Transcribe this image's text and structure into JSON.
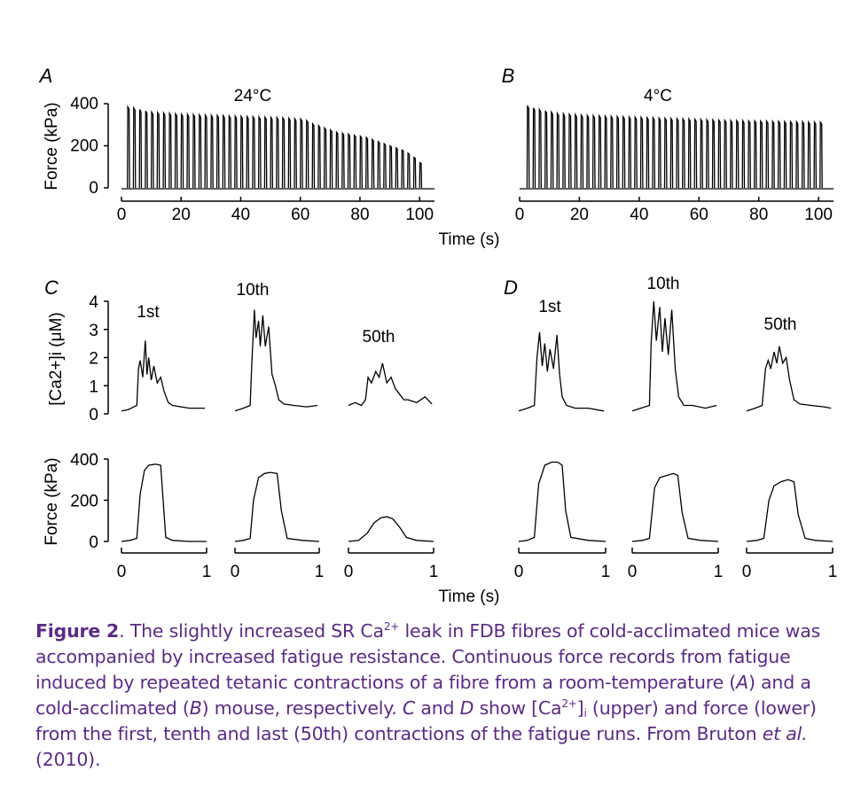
{
  "figure": {
    "panels": {
      "A": {
        "letter": "A",
        "temp": "24°C"
      },
      "B": {
        "letter": "B",
        "temp": "4°C"
      },
      "C": {
        "letter": "C"
      },
      "D": {
        "letter": "D"
      }
    },
    "time_s_label": "Time (s)",
    "force_label": "Force (kPa)",
    "ca_label": "[Ca2+]i (μM)",
    "trace_labels": [
      "1st",
      "10th",
      "50th"
    ]
  },
  "caption": {
    "figure_label": "Figure 2",
    "text_1": ". The slightly increased SR Ca",
    "text_2": " leak in FDB fibres of cold-acclimated mice was accompanied by increased fatigue resistance. Continuous force records from fatigue induced by repeated tetanic contractions of a fibre from a room-temperature (",
    "text_3": ") and a cold-acclimated (",
    "text_4": ") mouse, respectively. ",
    "text_5": " and ",
    "text_6": " show [Ca",
    "text_7": "]",
    "text_8": " (upper) and force (lower) from the first, tenth and last (50th) contractions of the fatigue runs. From Bruton ",
    "et_al": "et al.",
    "text_9": " (2010).",
    "sup": "2+",
    "sub": "i",
    "A": "A",
    "B": "B",
    "C": "C",
    "D": "D"
  },
  "chart_data": [
    {
      "panel": "A",
      "type": "line",
      "title": "24°C",
      "xlabel": "Time (s)",
      "ylabel": "Force (kPa)",
      "xlim": [
        0,
        105
      ],
      "ylim": [
        0,
        400
      ],
      "xticks": [
        0,
        20,
        40,
        60,
        80,
        100
      ],
      "yticks": [
        0,
        200,
        400
      ],
      "tetanus_count": 50,
      "first_tetanus_s": 2,
      "interval_s": 2.0,
      "peak_force_kPa": [
        385,
        380,
        372,
        365,
        360,
        358,
        356,
        354,
        352,
        350,
        349,
        348,
        347,
        346,
        345,
        344,
        343,
        342,
        341,
        340,
        339,
        338,
        337,
        336,
        335,
        334,
        333,
        331,
        329,
        327,
        320,
        305,
        296,
        285,
        275,
        265,
        260,
        255,
        250,
        245,
        240,
        230,
        220,
        210,
        200,
        190,
        180,
        165,
        145,
        120
      ]
    },
    {
      "panel": "B",
      "type": "line",
      "title": "4°C",
      "xlabel": "Time (s)",
      "ylabel": "",
      "xlim": [
        0,
        105
      ],
      "ylim": [
        0,
        400
      ],
      "xticks": [
        0,
        20,
        40,
        60,
        80,
        100
      ],
      "yticks": [],
      "tetanus_count": 50,
      "first_tetanus_s": 2.5,
      "interval_s": 2.0,
      "peak_force_kPa": [
        390,
        380,
        372,
        366,
        360,
        355,
        352,
        350,
        348,
        346,
        344,
        343,
        342,
        341,
        340,
        339,
        338,
        337,
        336,
        335,
        334,
        333,
        332,
        331,
        330,
        329,
        328,
        327,
        326,
        325,
        324,
        323,
        322,
        321,
        320,
        320,
        319,
        318,
        318,
        317,
        317,
        316,
        316,
        315,
        315,
        314,
        314,
        313,
        313,
        312
      ]
    },
    {
      "panel": "C",
      "type": "line",
      "xlabel": "Time (s)",
      "ylabel_top": "[Ca2+]i (μM)",
      "ylabel_bottom": "Force (kPa)",
      "ca_ylim": [
        0,
        4
      ],
      "ca_yticks": [
        0,
        1,
        2,
        3,
        4
      ],
      "force_ylim": [
        0,
        400
      ],
      "force_yticks": [
        0,
        200,
        400
      ],
      "xlim": [
        0,
        1
      ],
      "xticks": [
        0,
        1
      ],
      "series": [
        {
          "name": "1st",
          "ca_t": [
            0,
            0.08,
            0.18,
            0.2,
            0.22,
            0.25,
            0.28,
            0.3,
            0.32,
            0.35,
            0.38,
            0.42,
            0.46,
            0.5,
            0.55,
            0.6,
            0.7,
            0.8,
            0.9,
            0.98
          ],
          "ca_v": [
            0.1,
            0.15,
            0.3,
            1.6,
            1.9,
            1.3,
            2.6,
            1.4,
            2.0,
            1.2,
            1.7,
            1.1,
            1.3,
            0.8,
            0.4,
            0.3,
            0.25,
            0.2,
            0.2,
            0.2
          ],
          "force_t": [
            0,
            0.1,
            0.18,
            0.22,
            0.27,
            0.32,
            0.4,
            0.46,
            0.49,
            0.52,
            0.6,
            0.8,
            1.0
          ],
          "force_v": [
            0,
            5,
            15,
            230,
            345,
            370,
            375,
            370,
            200,
            20,
            5,
            0,
            0
          ]
        },
        {
          "name": "10th",
          "ca_t": [
            0,
            0.1,
            0.18,
            0.2,
            0.23,
            0.25,
            0.28,
            0.3,
            0.33,
            0.36,
            0.4,
            0.44,
            0.48,
            0.52,
            0.58,
            0.7,
            0.85,
            0.98
          ],
          "ca_v": [
            0.1,
            0.2,
            0.3,
            1.8,
            3.7,
            2.7,
            3.3,
            2.4,
            3.5,
            2.4,
            3.1,
            1.4,
            1.0,
            0.5,
            0.35,
            0.3,
            0.25,
            0.3
          ],
          "force_t": [
            0,
            0.1,
            0.18,
            0.22,
            0.28,
            0.35,
            0.42,
            0.5,
            0.55,
            0.62,
            0.8,
            1.0
          ],
          "force_v": [
            0,
            5,
            15,
            200,
            310,
            330,
            335,
            330,
            150,
            15,
            5,
            0
          ]
        },
        {
          "name": "50th",
          "ca_t": [
            0,
            0.08,
            0.15,
            0.2,
            0.23,
            0.27,
            0.32,
            0.36,
            0.4,
            0.45,
            0.5,
            0.55,
            0.6,
            0.65,
            0.7,
            0.8,
            0.9,
            0.98
          ],
          "ca_v": [
            0.3,
            0.4,
            0.3,
            0.5,
            1.3,
            1.1,
            1.5,
            1.3,
            1.8,
            1.1,
            1.3,
            0.9,
            0.7,
            0.5,
            0.5,
            0.4,
            0.6,
            0.35
          ],
          "force_t": [
            0,
            0.12,
            0.22,
            0.3,
            0.38,
            0.45,
            0.52,
            0.6,
            0.68,
            0.8,
            1.0
          ],
          "force_v": [
            0,
            5,
            40,
            90,
            115,
            120,
            110,
            70,
            20,
            5,
            0
          ]
        }
      ]
    },
    {
      "panel": "D",
      "type": "line",
      "xlabel": "Time (s)",
      "ca_ylim": [
        0,
        4
      ],
      "force_ylim": [
        0,
        400
      ],
      "xlim": [
        0,
        1
      ],
      "xticks": [
        0,
        1
      ],
      "series": [
        {
          "name": "1st",
          "ca_t": [
            0,
            0.1,
            0.18,
            0.21,
            0.24,
            0.27,
            0.3,
            0.33,
            0.36,
            0.4,
            0.44,
            0.47,
            0.5,
            0.55,
            0.65,
            0.8,
            0.98
          ],
          "ca_v": [
            0.1,
            0.2,
            0.3,
            2.0,
            2.9,
            1.7,
            2.5,
            1.5,
            2.3,
            1.6,
            2.8,
            1.4,
            0.6,
            0.3,
            0.2,
            0.2,
            0.1
          ],
          "force_t": [
            0,
            0.1,
            0.18,
            0.23,
            0.3,
            0.38,
            0.45,
            0.5,
            0.54,
            0.6,
            0.8,
            1.0
          ],
          "force_v": [
            0,
            5,
            20,
            280,
            370,
            385,
            385,
            370,
            150,
            20,
            5,
            0
          ]
        },
        {
          "name": "10th",
          "ca_t": [
            0,
            0.1,
            0.2,
            0.22,
            0.25,
            0.28,
            0.32,
            0.35,
            0.38,
            0.42,
            0.46,
            0.5,
            0.54,
            0.6,
            0.7,
            0.85,
            0.98
          ],
          "ca_v": [
            0.1,
            0.2,
            0.3,
            2.5,
            4.0,
            2.6,
            3.8,
            2.2,
            3.4,
            2.1,
            3.7,
            1.6,
            0.6,
            0.3,
            0.3,
            0.2,
            0.3
          ],
          "force_t": [
            0,
            0.12,
            0.2,
            0.26,
            0.32,
            0.4,
            0.48,
            0.53,
            0.58,
            0.65,
            0.8,
            1.0
          ],
          "force_v": [
            0,
            5,
            15,
            260,
            310,
            320,
            330,
            320,
            140,
            15,
            5,
            0
          ]
        },
        {
          "name": "50th",
          "ca_t": [
            0,
            0.1,
            0.18,
            0.22,
            0.25,
            0.28,
            0.32,
            0.35,
            0.38,
            0.42,
            0.46,
            0.5,
            0.55,
            0.62,
            0.75,
            0.9,
            0.98
          ],
          "ca_v": [
            0.1,
            0.2,
            0.3,
            1.6,
            1.9,
            1.6,
            2.2,
            1.8,
            2.4,
            1.8,
            2.0,
            1.2,
            0.5,
            0.35,
            0.3,
            0.25,
            0.2
          ],
          "force_t": [
            0,
            0.12,
            0.2,
            0.26,
            0.32,
            0.4,
            0.48,
            0.55,
            0.6,
            0.68,
            0.8,
            1.0
          ],
          "force_v": [
            0,
            5,
            15,
            200,
            270,
            290,
            300,
            290,
            130,
            15,
            5,
            0
          ]
        }
      ]
    }
  ]
}
